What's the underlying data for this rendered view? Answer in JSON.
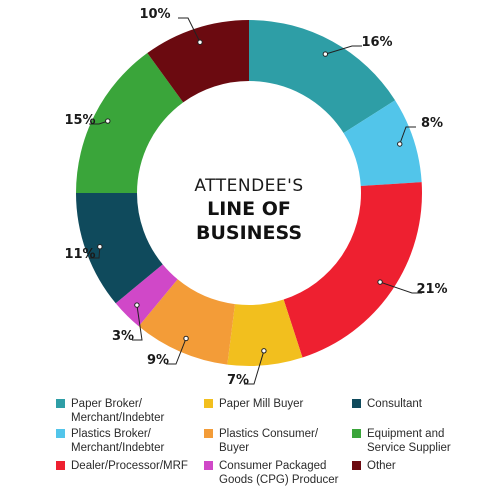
{
  "chart_data": {
    "type": "pie",
    "donut": true,
    "title_line1": "ATTENDEE'S",
    "title_line2": "LINE OF",
    "title_line3": "BUSINESS",
    "slices": [
      {
        "label": "Paper Broker/ Merchant/Indebter",
        "legend_lines": [
          "Paper Broker/",
          "Merchant/Indebter"
        ],
        "value": 16,
        "pct_label": "16%",
        "color": "#2e9ea6"
      },
      {
        "label": "Plastics Broker/ Merchant/Indebter",
        "legend_lines": [
          "Plastics Broker/",
          "Merchant/Indebter"
        ],
        "value": 8,
        "pct_label": "8%",
        "color": "#52c5ea"
      },
      {
        "label": "Dealer/Processor/MRF",
        "legend_lines": [
          "Dealer/Processor/MRF"
        ],
        "value": 21,
        "pct_label": "21%",
        "color": "#ee2030"
      },
      {
        "label": "Paper Mill Buyer",
        "legend_lines": [
          "Paper Mill Buyer"
        ],
        "value": 7,
        "pct_label": "7%",
        "color": "#f2bf1e"
      },
      {
        "label": "Plastics Consumer/ Buyer",
        "legend_lines": [
          "Plastics Consumer/",
          "Buyer"
        ],
        "value": 9,
        "pct_label": "9%",
        "color": "#f39c38"
      },
      {
        "label": "Consumer Packaged Goods (CPG) Producer",
        "legend_lines": [
          "Consumer Packaged",
          "Goods (CPG) Producer"
        ],
        "value": 3,
        "pct_label": "3%",
        "color": "#d048c8"
      },
      {
        "label": "Consultant",
        "legend_lines": [
          "Consultant"
        ],
        "value": 11,
        "pct_label": "11%",
        "color": "#0f4a5c"
      },
      {
        "label": "Equipment and Service Supplier",
        "legend_lines": [
          "Equipment and",
          "Service Supplier"
        ],
        "value": 15,
        "pct_label": "15%",
        "color": "#3aa53a"
      },
      {
        "label": "Other",
        "legend_lines": [
          "Other"
        ],
        "value": 10,
        "pct_label": "10%",
        "color": "#6b0a10"
      }
    ],
    "legend_columns": [
      [
        0,
        1,
        2
      ],
      [
        3,
        4,
        5
      ],
      [
        6,
        7,
        8
      ]
    ],
    "legend_placement": "bottom",
    "start_angle_deg": 0,
    "direction": "clockwise"
  }
}
